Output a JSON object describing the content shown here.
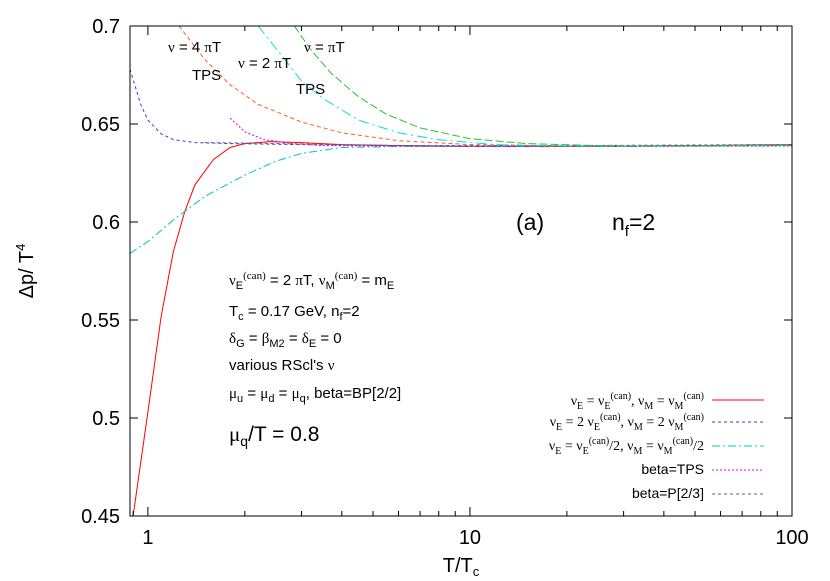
{
  "chart_data": {
    "type": "line",
    "xlabel": "T/T_c",
    "ylabel": "Δp/ T^4",
    "xscale": "log",
    "xlim": [
      0.88,
      100
    ],
    "ylim": [
      0.45,
      0.7
    ],
    "grid": false,
    "legend_position": "bottom-right",
    "x_ticks": [
      "1",
      "10",
      "100"
    ],
    "y_ticks": [
      "0.45",
      "0.5",
      "0.55",
      "0.6",
      "0.65",
      "0.7"
    ],
    "panel_label": "(a)",
    "nf_label": "n_f=2",
    "info_lines": [
      "ν_E^(can) = 2 πT, ν_M^(can) = m_E",
      "T_c = 0.17 GeV, n_f=2",
      "δ_G = β_M2 = δ_E = 0",
      "various RScl's ν",
      "μ_u = μ_d = μ_q, beta=BP[2/2]"
    ],
    "mu_label": "μ_q/T = 0.8",
    "annotations": [
      "ν = 4 πT",
      "TPS",
      "ν = 2 πT",
      "ν = πT",
      "TPS"
    ],
    "series": [
      {
        "name": "ν_E = ν_E^(can), ν_M = ν_M^(can)",
        "color": "#ff0000",
        "dash": "solid",
        "points": [
          [
            0.9,
            0.45
          ],
          [
            1.0,
            0.503
          ],
          [
            1.1,
            0.552
          ],
          [
            1.2,
            0.585
          ],
          [
            1.3,
            0.605
          ],
          [
            1.4,
            0.619
          ],
          [
            1.6,
            0.632
          ],
          [
            1.8,
            0.638
          ],
          [
            2.0,
            0.64
          ],
          [
            2.4,
            0.641
          ],
          [
            3.0,
            0.6405
          ],
          [
            4.0,
            0.6395
          ],
          [
            6.0,
            0.639
          ],
          [
            10,
            0.6385
          ],
          [
            20,
            0.6385
          ],
          [
            50,
            0.639
          ],
          [
            100,
            0.6395
          ]
        ]
      },
      {
        "name": "ν_E = 2 ν_E^(can), ν_M = 2 ν_M^(can)",
        "color": "#3b3bd9",
        "dash": "3,3",
        "points": [
          [
            0.88,
            0.678
          ],
          [
            0.95,
            0.66
          ],
          [
            1.0,
            0.652
          ],
          [
            1.1,
            0.645
          ],
          [
            1.2,
            0.642
          ],
          [
            1.4,
            0.6405
          ],
          [
            1.8,
            0.64
          ],
          [
            3.0,
            0.6395
          ],
          [
            6.0,
            0.639
          ],
          [
            20,
            0.639
          ],
          [
            100,
            0.6395
          ]
        ]
      },
      {
        "name": "ν_E = ν_E^(can)/2, ν_M = ν_M^(can)/2",
        "color": "#00c8c8",
        "dash": "8,3,2,3",
        "points": [
          [
            0.88,
            0.584
          ],
          [
            1.0,
            0.59
          ],
          [
            1.2,
            0.601
          ],
          [
            1.5,
            0.613
          ],
          [
            2.0,
            0.624
          ],
          [
            2.5,
            0.631
          ],
          [
            3.0,
            0.635
          ],
          [
            4.0,
            0.638
          ],
          [
            6.0,
            0.6385
          ],
          [
            10,
            0.6385
          ],
          [
            30,
            0.6385
          ],
          [
            100,
            0.639
          ]
        ]
      },
      {
        "name": "beta=TPS",
        "color": "#e000e0",
        "dash": "2,2",
        "points": [
          [
            1.8,
            0.653
          ],
          [
            2.0,
            0.646
          ],
          [
            2.3,
            0.642
          ],
          [
            2.8,
            0.64
          ],
          [
            3.5,
            0.639
          ],
          [
            5,
            0.6388
          ],
          [
            10,
            0.6385
          ],
          [
            30,
            0.6385
          ],
          [
            100,
            0.6388
          ]
        ]
      },
      {
        "name": "beta=P[2/3]",
        "color": "#666666",
        "dash": "3,3",
        "points": [
          [
            1.5,
            0.6405
          ],
          [
            2,
            0.6403
          ],
          [
            3,
            0.6398
          ],
          [
            5,
            0.6392
          ],
          [
            10,
            0.6388
          ],
          [
            30,
            0.6388
          ],
          [
            100,
            0.6392
          ]
        ]
      },
      {
        "name": "",
        "color": "#ff5a1f",
        "dash": "4,3",
        "points": [
          [
            1.25,
            0.7
          ],
          [
            1.5,
            0.683
          ],
          [
            1.8,
            0.67
          ],
          [
            2.2,
            0.66
          ],
          [
            3.0,
            0.651
          ],
          [
            4.0,
            0.6455
          ],
          [
            6.0,
            0.6415
          ],
          [
            10,
            0.6395
          ],
          [
            20,
            0.6388
          ],
          [
            50,
            0.6388
          ],
          [
            100,
            0.6392
          ]
        ]
      },
      {
        "name": "",
        "color": "#00dede",
        "dash": "10,4,2,4",
        "points": [
          [
            2.2,
            0.7
          ],
          [
            2.6,
            0.685
          ],
          [
            3.0,
            0.672
          ],
          [
            3.5,
            0.663
          ],
          [
            4.5,
            0.652
          ],
          [
            6,
            0.6455
          ],
          [
            8,
            0.642
          ],
          [
            12,
            0.6395
          ],
          [
            20,
            0.6388
          ],
          [
            50,
            0.6388
          ],
          [
            100,
            0.6392
          ]
        ]
      },
      {
        "name": "",
        "color": "#2fbf2f",
        "dash": "8,3",
        "points": [
          [
            2.85,
            0.7
          ],
          [
            3.2,
            0.688
          ],
          [
            3.7,
            0.676
          ],
          [
            4.5,
            0.664
          ],
          [
            5.5,
            0.655
          ],
          [
            7,
            0.648
          ],
          [
            10,
            0.6425
          ],
          [
            15,
            0.64
          ],
          [
            25,
            0.639
          ],
          [
            50,
            0.6388
          ],
          [
            100,
            0.6392
          ]
        ]
      }
    ]
  }
}
